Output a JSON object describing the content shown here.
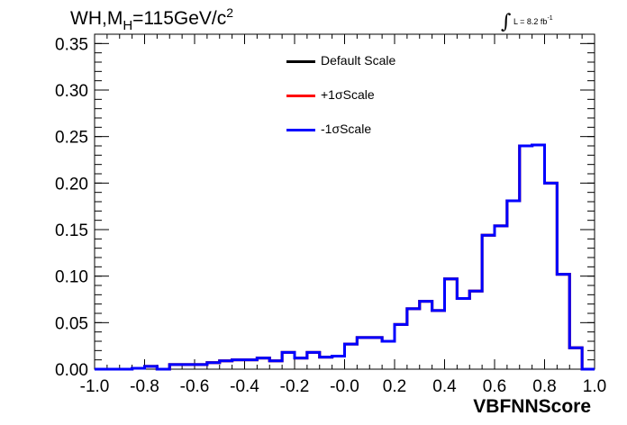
{
  "header": {
    "title_prefix": "WH,M",
    "title_sub": "H",
    "title_suffix": "=115GeV/c",
    "title_sup": "2",
    "lumi_integral": "∫",
    "lumi_text": "L = 8.2 fb",
    "lumi_sup": "-1"
  },
  "legend": {
    "items": [
      {
        "label": "Default Scale",
        "color": "#000000"
      },
      {
        "label": "+1σScale",
        "color": "#ff0000"
      },
      {
        "label": "-1σScale",
        "color": "#0000ff"
      }
    ]
  },
  "chart_data": {
    "type": "line",
    "style": "step-histogram",
    "title": "WH,M_H=115GeV/c^2",
    "xlabel": "VBFNNScore",
    "ylabel": "",
    "xlim": [
      -1.0,
      1.0
    ],
    "ylim": [
      0.0,
      0.36
    ],
    "x_ticks": [
      "-1.0",
      "-0.8",
      "-0.6",
      "-0.4",
      "-0.2",
      "-0.0",
      "0.2",
      "0.4",
      "0.6",
      "0.8",
      "1.0"
    ],
    "y_ticks": [
      "0.00",
      "0.05",
      "0.10",
      "0.15",
      "0.20",
      "0.25",
      "0.30",
      "0.35"
    ],
    "bin_edges": [
      -1.0,
      -0.95,
      -0.9,
      -0.85,
      -0.8,
      -0.75,
      -0.7,
      -0.65,
      -0.6,
      -0.55,
      -0.5,
      -0.45,
      -0.4,
      -0.35,
      -0.3,
      -0.25,
      -0.2,
      -0.15,
      -0.1,
      -0.05,
      0.0,
      0.05,
      0.1,
      0.15,
      0.2,
      0.25,
      0.3,
      0.35,
      0.4,
      0.45,
      0.5,
      0.55,
      0.6,
      0.65,
      0.7,
      0.75,
      0.8,
      0.85,
      0.9,
      0.95,
      1.0
    ],
    "series": [
      {
        "name": "Default Scale",
        "color": "#000000",
        "values": [
          0.0,
          0.0,
          0.0,
          0.001,
          0.003,
          0.0,
          0.005,
          0.005,
          0.005,
          0.007,
          0.009,
          0.01,
          0.01,
          0.012,
          0.009,
          0.018,
          0.012,
          0.018,
          0.013,
          0.014,
          0.027,
          0.034,
          0.034,
          0.03,
          0.048,
          0.065,
          0.073,
          0.063,
          0.097,
          0.076,
          0.084,
          0.144,
          0.154,
          0.181,
          0.24,
          0.241,
          0.2,
          0.102,
          0.023,
          0.0
        ]
      },
      {
        "name": "+1σScale",
        "color": "#ff0000",
        "values": [
          0.0,
          0.0,
          0.0,
          0.001,
          0.003,
          0.0,
          0.005,
          0.005,
          0.005,
          0.007,
          0.009,
          0.01,
          0.01,
          0.012,
          0.009,
          0.018,
          0.012,
          0.018,
          0.013,
          0.014,
          0.027,
          0.034,
          0.034,
          0.03,
          0.048,
          0.065,
          0.073,
          0.063,
          0.097,
          0.076,
          0.084,
          0.144,
          0.154,
          0.181,
          0.24,
          0.241,
          0.2,
          0.102,
          0.023,
          0.0
        ]
      },
      {
        "name": "-1σScale",
        "color": "#0000ff",
        "values": [
          0.0,
          0.0,
          0.0,
          0.001,
          0.003,
          0.0,
          0.005,
          0.005,
          0.005,
          0.007,
          0.009,
          0.01,
          0.01,
          0.012,
          0.009,
          0.018,
          0.012,
          0.018,
          0.013,
          0.014,
          0.027,
          0.034,
          0.034,
          0.03,
          0.048,
          0.065,
          0.073,
          0.063,
          0.097,
          0.076,
          0.084,
          0.144,
          0.154,
          0.181,
          0.24,
          0.241,
          0.2,
          0.102,
          0.023,
          0.0
        ]
      }
    ],
    "grid": false,
    "legend_position": "top-center"
  }
}
